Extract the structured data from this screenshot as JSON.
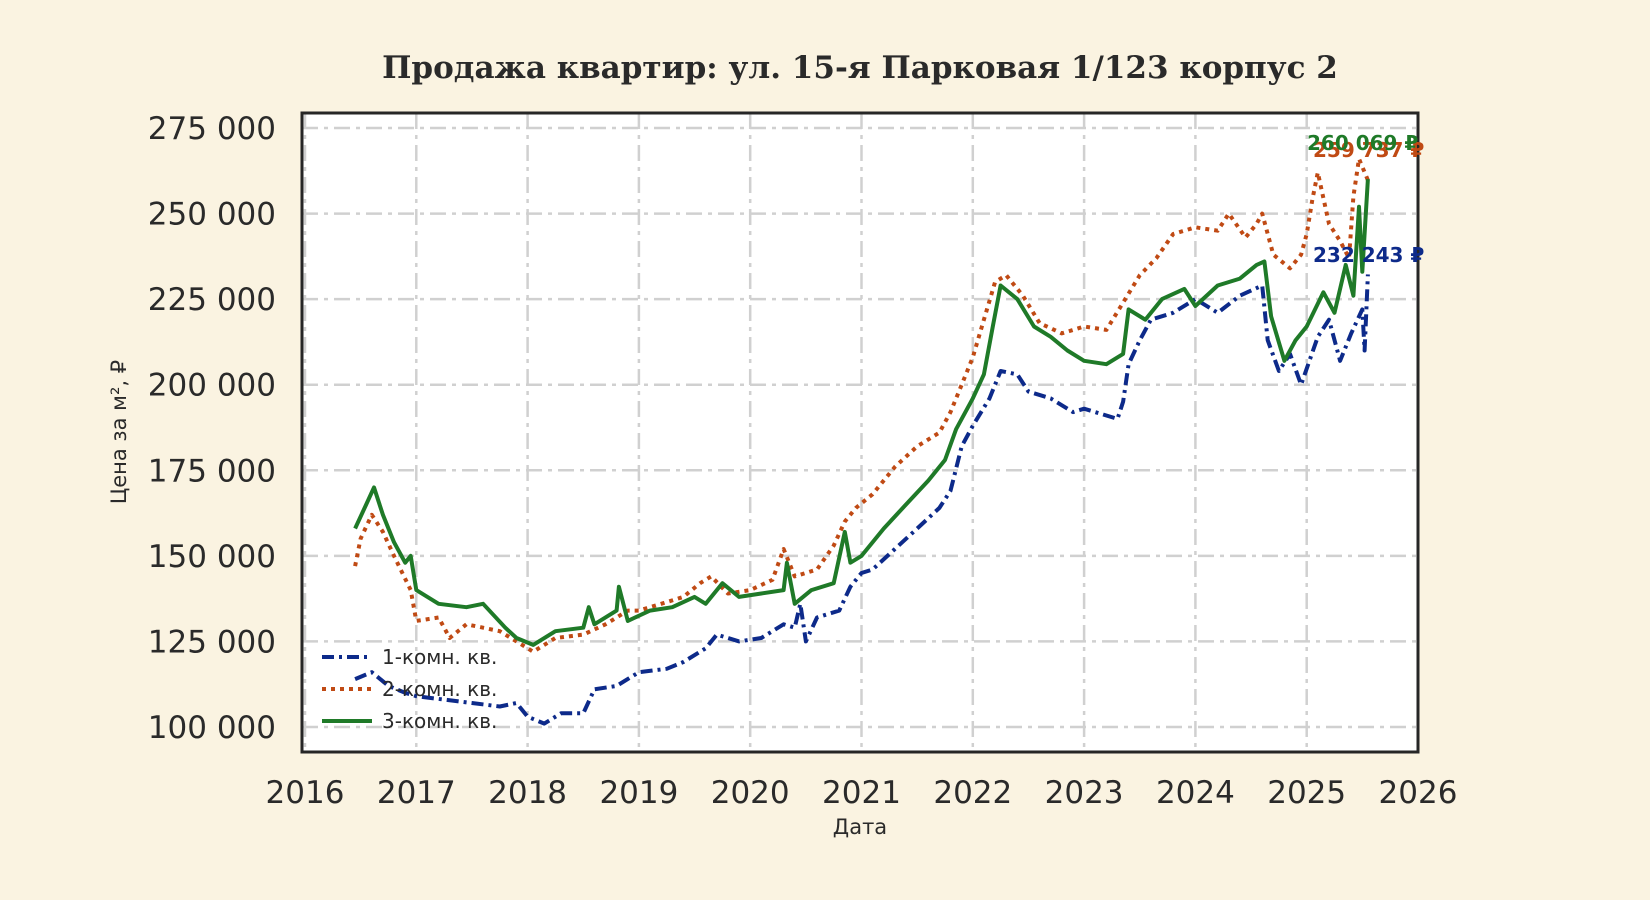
{
  "chart_data": {
    "type": "line",
    "title": "Продажа квартир: ул. 15-я Парковая 1/123 корпус 2",
    "xlabel": "Дата",
    "ylabel": "Цена за м², ₽",
    "xlim": [
      2016,
      2026
    ],
    "ylim": [
      93000,
      280000
    ],
    "x_ticks": [
      "2016",
      "2017",
      "2018",
      "2019",
      "2020",
      "2021",
      "2022",
      "2023",
      "2024",
      "2025",
      "2026"
    ],
    "y_ticks": [
      "100 000",
      "125 000",
      "150 000",
      "175 000",
      "200 000",
      "225 000",
      "250 000",
      "275 000"
    ],
    "y_tick_values": [
      100000,
      125000,
      150000,
      175000,
      200000,
      225000,
      250000,
      275000
    ],
    "grid": true,
    "legend_position": "lower left",
    "series": [
      {
        "name": "1-комн. кв.",
        "color": "#0d2a8a",
        "style": "dashdot",
        "end_label": "232 243 ₽",
        "points": [
          [
            2016.45,
            114000
          ],
          [
            2016.6,
            116000
          ],
          [
            2016.75,
            112000
          ],
          [
            2016.9,
            110000
          ],
          [
            2017.0,
            109000
          ],
          [
            2017.25,
            108000
          ],
          [
            2017.5,
            107000
          ],
          [
            2017.75,
            106000
          ],
          [
            2017.9,
            107000
          ],
          [
            2018.0,
            103000
          ],
          [
            2018.15,
            101000
          ],
          [
            2018.3,
            104000
          ],
          [
            2018.5,
            104000
          ],
          [
            2018.6,
            111000
          ],
          [
            2018.8,
            112000
          ],
          [
            2019.0,
            116000
          ],
          [
            2019.25,
            117000
          ],
          [
            2019.4,
            119000
          ],
          [
            2019.6,
            123000
          ],
          [
            2019.7,
            127000
          ],
          [
            2019.9,
            125000
          ],
          [
            2020.1,
            126000
          ],
          [
            2020.3,
            130000
          ],
          [
            2020.4,
            129000
          ],
          [
            2020.45,
            136000
          ],
          [
            2020.5,
            125000
          ],
          [
            2020.6,
            132000
          ],
          [
            2020.8,
            134000
          ],
          [
            2020.9,
            141000
          ],
          [
            2021.0,
            145000
          ],
          [
            2021.1,
            146000
          ],
          [
            2021.3,
            152000
          ],
          [
            2021.5,
            158000
          ],
          [
            2021.7,
            164000
          ],
          [
            2021.8,
            169000
          ],
          [
            2021.9,
            182000
          ],
          [
            2022.0,
            188000
          ],
          [
            2022.15,
            196000
          ],
          [
            2022.25,
            204000
          ],
          [
            2022.4,
            203000
          ],
          [
            2022.5,
            198000
          ],
          [
            2022.7,
            196000
          ],
          [
            2022.9,
            192000
          ],
          [
            2023.0,
            193000
          ],
          [
            2023.2,
            191000
          ],
          [
            2023.3,
            190000
          ],
          [
            2023.35,
            195000
          ],
          [
            2023.4,
            206000
          ],
          [
            2023.5,
            213000
          ],
          [
            2023.6,
            219000
          ],
          [
            2023.8,
            221000
          ],
          [
            2024.0,
            225000
          ],
          [
            2024.2,
            221000
          ],
          [
            2024.4,
            226000
          ],
          [
            2024.6,
            229000
          ],
          [
            2024.65,
            213000
          ],
          [
            2024.75,
            204000
          ],
          [
            2024.85,
            209000
          ],
          [
            2024.95,
            200000
          ],
          [
            2025.1,
            214000
          ],
          [
            2025.2,
            219000
          ],
          [
            2025.3,
            207000
          ],
          [
            2025.4,
            215000
          ],
          [
            2025.5,
            222000
          ],
          [
            2025.52,
            210000
          ],
          [
            2025.55,
            232243
          ]
        ]
      },
      {
        "name": "2-комн. кв.",
        "color": "#c04a14",
        "style": "dotted",
        "end_label": "259 737 ₽",
        "points": [
          [
            2016.45,
            147000
          ],
          [
            2016.5,
            155000
          ],
          [
            2016.6,
            162000
          ],
          [
            2016.7,
            157000
          ],
          [
            2016.8,
            150000
          ],
          [
            2016.95,
            140000
          ],
          [
            2017.0,
            131000
          ],
          [
            2017.2,
            132000
          ],
          [
            2017.3,
            126000
          ],
          [
            2017.45,
            130000
          ],
          [
            2017.6,
            129000
          ],
          [
            2017.75,
            128000
          ],
          [
            2017.9,
            125000
          ],
          [
            2018.05,
            122000
          ],
          [
            2018.25,
            126000
          ],
          [
            2018.5,
            127000
          ],
          [
            2018.7,
            130000
          ],
          [
            2018.9,
            134000
          ],
          [
            2019.0,
            134000
          ],
          [
            2019.2,
            136000
          ],
          [
            2019.4,
            138000
          ],
          [
            2019.55,
            142000
          ],
          [
            2019.65,
            144000
          ],
          [
            2019.8,
            139000
          ],
          [
            2020.0,
            140000
          ],
          [
            2020.2,
            143000
          ],
          [
            2020.3,
            152000
          ],
          [
            2020.4,
            144000
          ],
          [
            2020.6,
            146000
          ],
          [
            2020.75,
            153000
          ],
          [
            2020.85,
            160000
          ],
          [
            2020.95,
            164000
          ],
          [
            2021.1,
            168000
          ],
          [
            2021.3,
            176000
          ],
          [
            2021.5,
            182000
          ],
          [
            2021.7,
            186000
          ],
          [
            2021.8,
            192000
          ],
          [
            2021.9,
            200000
          ],
          [
            2022.0,
            208000
          ],
          [
            2022.1,
            219000
          ],
          [
            2022.2,
            230000
          ],
          [
            2022.3,
            232000
          ],
          [
            2022.45,
            226000
          ],
          [
            2022.6,
            218000
          ],
          [
            2022.8,
            215000
          ],
          [
            2023.0,
            217000
          ],
          [
            2023.2,
            216000
          ],
          [
            2023.35,
            224000
          ],
          [
            2023.5,
            232000
          ],
          [
            2023.65,
            237000
          ],
          [
            2023.8,
            244000
          ],
          [
            2024.0,
            246000
          ],
          [
            2024.2,
            245000
          ],
          [
            2024.3,
            250000
          ],
          [
            2024.45,
            243000
          ],
          [
            2024.55,
            247000
          ],
          [
            2024.6,
            250000
          ],
          [
            2024.7,
            238000
          ],
          [
            2024.85,
            234000
          ],
          [
            2024.95,
            238000
          ],
          [
            2025.0,
            244000
          ],
          [
            2025.05,
            254000
          ],
          [
            2025.1,
            262000
          ],
          [
            2025.2,
            247000
          ],
          [
            2025.3,
            242000
          ],
          [
            2025.38,
            237000
          ],
          [
            2025.42,
            255000
          ],
          [
            2025.47,
            266000
          ],
          [
            2025.55,
            259737
          ]
        ]
      },
      {
        "name": "3-комн. кв.",
        "color": "#1f7a28",
        "style": "solid",
        "end_label": "260 069 ₽",
        "points": [
          [
            2016.45,
            158000
          ],
          [
            2016.55,
            165000
          ],
          [
            2016.62,
            170000
          ],
          [
            2016.7,
            162000
          ],
          [
            2016.8,
            154000
          ],
          [
            2016.9,
            148000
          ],
          [
            2016.95,
            150000
          ],
          [
            2017.0,
            140000
          ],
          [
            2017.2,
            136000
          ],
          [
            2017.45,
            135000
          ],
          [
            2017.6,
            136000
          ],
          [
            2017.8,
            129000
          ],
          [
            2017.9,
            126000
          ],
          [
            2018.05,
            124000
          ],
          [
            2018.25,
            128000
          ],
          [
            2018.5,
            129000
          ],
          [
            2018.55,
            135000
          ],
          [
            2018.6,
            130000
          ],
          [
            2018.8,
            134000
          ],
          [
            2018.82,
            141000
          ],
          [
            2018.9,
            131000
          ],
          [
            2019.1,
            134000
          ],
          [
            2019.3,
            135000
          ],
          [
            2019.5,
            138000
          ],
          [
            2019.6,
            136000
          ],
          [
            2019.75,
            142000
          ],
          [
            2019.9,
            138000
          ],
          [
            2020.1,
            139000
          ],
          [
            2020.3,
            140000
          ],
          [
            2020.33,
            148000
          ],
          [
            2020.4,
            136000
          ],
          [
            2020.55,
            140000
          ],
          [
            2020.75,
            142000
          ],
          [
            2020.85,
            157000
          ],
          [
            2020.9,
            148000
          ],
          [
            2021.0,
            150000
          ],
          [
            2021.2,
            158000
          ],
          [
            2021.4,
            165000
          ],
          [
            2021.6,
            172000
          ],
          [
            2021.75,
            178000
          ],
          [
            2021.85,
            187000
          ],
          [
            2022.0,
            196000
          ],
          [
            2022.1,
            203000
          ],
          [
            2022.18,
            217000
          ],
          [
            2022.25,
            229000
          ],
          [
            2022.4,
            225000
          ],
          [
            2022.55,
            217000
          ],
          [
            2022.7,
            214000
          ],
          [
            2022.85,
            210000
          ],
          [
            2023.0,
            207000
          ],
          [
            2023.2,
            206000
          ],
          [
            2023.35,
            209000
          ],
          [
            2023.4,
            222000
          ],
          [
            2023.55,
            219000
          ],
          [
            2023.7,
            225000
          ],
          [
            2023.9,
            228000
          ],
          [
            2024.0,
            223000
          ],
          [
            2024.2,
            229000
          ],
          [
            2024.4,
            231000
          ],
          [
            2024.55,
            235000
          ],
          [
            2024.62,
            236000
          ],
          [
            2024.68,
            220000
          ],
          [
            2024.8,
            207000
          ],
          [
            2024.9,
            213000
          ],
          [
            2025.0,
            217000
          ],
          [
            2025.15,
            227000
          ],
          [
            2025.25,
            221000
          ],
          [
            2025.35,
            235000
          ],
          [
            2025.42,
            226000
          ],
          [
            2025.47,
            252000
          ],
          [
            2025.5,
            233000
          ],
          [
            2025.55,
            260069
          ]
        ]
      }
    ]
  },
  "labels": {
    "title": "Продажа квартир: ул. 15-я Парковая 1/123 корпус 2",
    "xlabel": "Дата",
    "ylabel": "Цена за м², ₽"
  }
}
